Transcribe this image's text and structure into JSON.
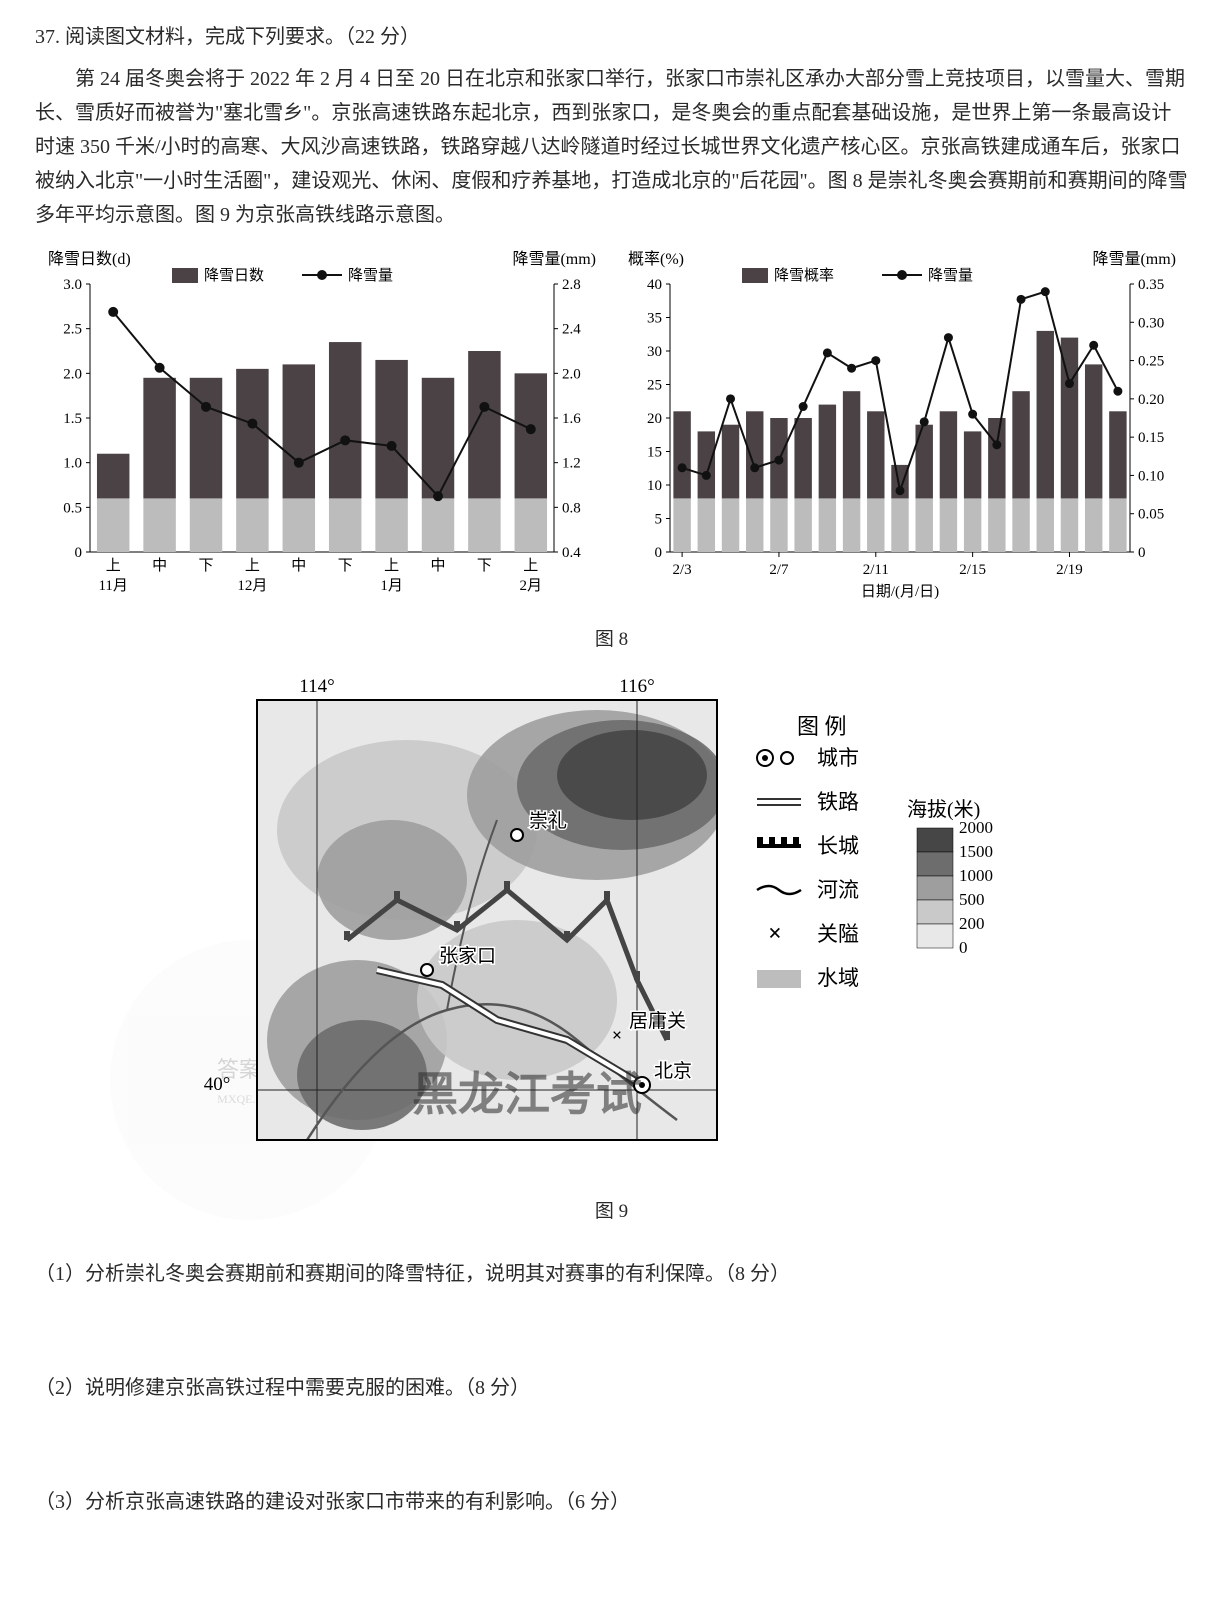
{
  "question": {
    "number_prefix": "37.",
    "title": "阅读图文材料，完成下列要求。（22 分）",
    "passage": "第 24 届冬奥会将于 2022 年 2 月 4 日至 20 日在北京和张家口举行，张家口市崇礼区承办大部分雪上竞技项目，以雪量大、雪期长、雪质好而被誉为\"塞北雪乡\"。京张高速铁路东起北京，西到张家口，是冬奥会的重点配套基础设施，是世界上第一条最高设计时速 350 千米/小时的高寒、大风沙高速铁路，铁路穿越八达岭隧道时经过长城世界文化遗产核心区。京张高铁建成通车后，张家口被纳入北京\"一小时生活圈\"，建设观光、休闲、度假和疗养基地，打造成北京的\"后花园\"。图 8 是崇礼冬奥会赛期前和赛期间的降雪多年平均示意图。图 9 为京张高铁线路示意图。"
  },
  "figure8": {
    "label": "图 8",
    "left_chart": {
      "y_left_label": "降雪日数(d)",
      "y_right_label": "降雪量(mm)",
      "legend_bar": "降雪日数",
      "legend_line": "降雪量",
      "x_groups": [
        "11月",
        "12月",
        "1月",
        "2月"
      ],
      "x_sub": [
        "上",
        "中",
        "下",
        "上",
        "中",
        "下",
        "上",
        "中",
        "下",
        "上"
      ],
      "y_left": {
        "min": 0,
        "max": 3.0,
        "step": 0.5,
        "ticks": [
          "0",
          "0.5",
          "1.0",
          "1.5",
          "2.0",
          "2.5",
          "3.0"
        ]
      },
      "y_right": {
        "min": 0.4,
        "max": 2.8,
        "ticks": [
          "0.4",
          "0.8",
          "1.2",
          "1.6",
          "2.0",
          "2.4",
          "2.8"
        ]
      },
      "bar_values": [
        1.1,
        1.95,
        1.95,
        2.05,
        2.1,
        2.35,
        2.15,
        1.95,
        2.25,
        2.0
      ],
      "line_values": [
        2.55,
        2.05,
        1.7,
        1.55,
        1.2,
        1.4,
        1.35,
        0.9,
        1.7,
        1.5
      ],
      "bar_color": "#4a4244",
      "bar_base_color": "#bcbcbc",
      "line_color": "#111111",
      "axis_color": "#000000",
      "bg": "#ffffff"
    },
    "right_chart": {
      "y_left_label": "概率(%)",
      "y_right_label": "降雪量(mm)",
      "legend_bar": "降雪概率",
      "legend_line": "降雪量",
      "x_labels": [
        "2/3",
        "2/7",
        "2/11",
        "2/15",
        "2/19"
      ],
      "x_positions_idx": [
        0,
        4,
        8,
        12,
        16
      ],
      "y_left": {
        "min": 0,
        "max": 40,
        "step": 5,
        "ticks": [
          "0",
          "5",
          "10",
          "15",
          "20",
          "25",
          "30",
          "35",
          "40"
        ]
      },
      "y_right": {
        "min": 0,
        "max": 0.35,
        "step": 0.05,
        "ticks": [
          "0",
          "0.05",
          "0.10",
          "0.15",
          "0.20",
          "0.25",
          "0.30",
          "0.35"
        ]
      },
      "bar_values": [
        21,
        18,
        19,
        21,
        20,
        20,
        22,
        24,
        21,
        13,
        19,
        21,
        18,
        20,
        24,
        33,
        32,
        28,
        21
      ],
      "line_values": [
        0.11,
        0.1,
        0.2,
        0.11,
        0.12,
        0.19,
        0.26,
        0.24,
        0.25,
        0.08,
        0.17,
        0.28,
        0.18,
        0.14,
        0.33,
        0.34,
        0.22,
        0.27,
        0.21
      ],
      "bar_color": "#4a4244",
      "bar_base_color": "#bcbcbc",
      "line_color": "#111111",
      "axis_color": "#000000"
    }
  },
  "figure9": {
    "label": "图 9",
    "lon_labels": [
      "114°",
      "116°"
    ],
    "lat_label": "40°",
    "city_labels": {
      "chongli": "崇礼",
      "zhangjiakou": "张家口",
      "juyong": "居庸关",
      "beijing": "北京"
    },
    "legend_title": "图 例",
    "legend": {
      "city": "城市",
      "rail": "铁路",
      "wall": "长城",
      "river": "河流",
      "pass": "关隘",
      "water": "水域"
    },
    "elev_title": "海拔(米)",
    "elev_ticks": [
      "2000",
      "1500",
      "1000",
      "500",
      "200",
      "0"
    ],
    "elev_colors": [
      "#464646",
      "#6d6d6d",
      "#9e9e9e",
      "#c9c9c9",
      "#e8e8e8"
    ],
    "map_colors": {
      "frame": "#000",
      "river": "#555",
      "wall": "#444",
      "rail_outer": "#fff",
      "rail_inner": "#333"
    },
    "watermark_text": "黑龙江考试"
  },
  "sub_questions": {
    "q1": "（1）分析崇礼冬奥会赛期前和赛期间的降雪特征，说明其对赛事的有利保障。（8 分）",
    "q2": "（2）说明修建京张高铁过程中需要克服的困难。（8 分）",
    "q3": "（3）分析京张高速铁路的建设对张家口市带来的有利影响。（6 分）"
  },
  "watermark_badge": {
    "line1": "答案圈",
    "line2": "MXQE.COM"
  }
}
